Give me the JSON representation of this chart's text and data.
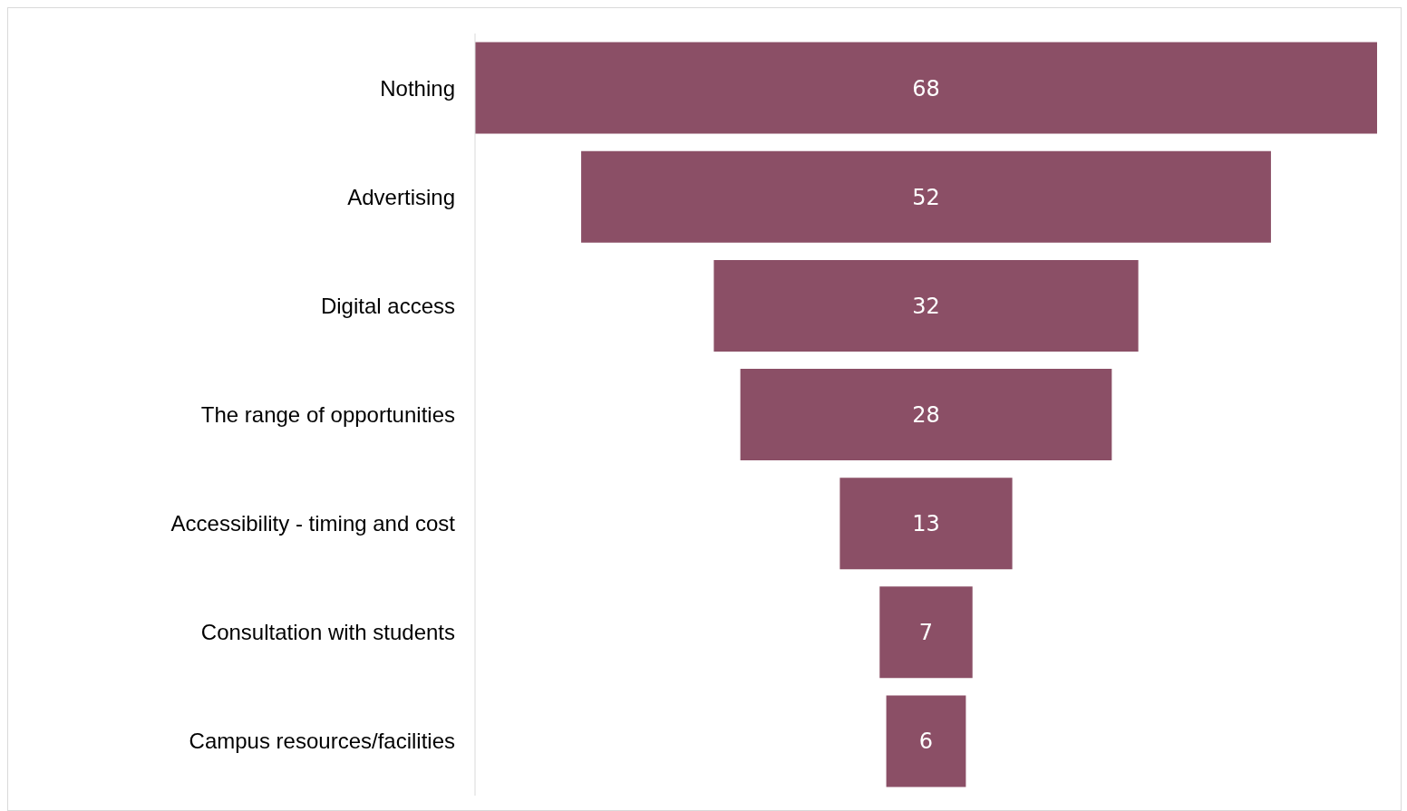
{
  "chart_data": {
    "type": "other",
    "categories": [
      "Nothing",
      "Advertising",
      "Digital access",
      "The range of opportunities",
      "Accessibility - timing and cost",
      "Consultation with students",
      "Campus resources/facilities"
    ],
    "values": [
      68,
      52,
      32,
      28,
      13,
      7,
      6
    ],
    "color": "#8b4f66",
    "data_labels": true
  }
}
